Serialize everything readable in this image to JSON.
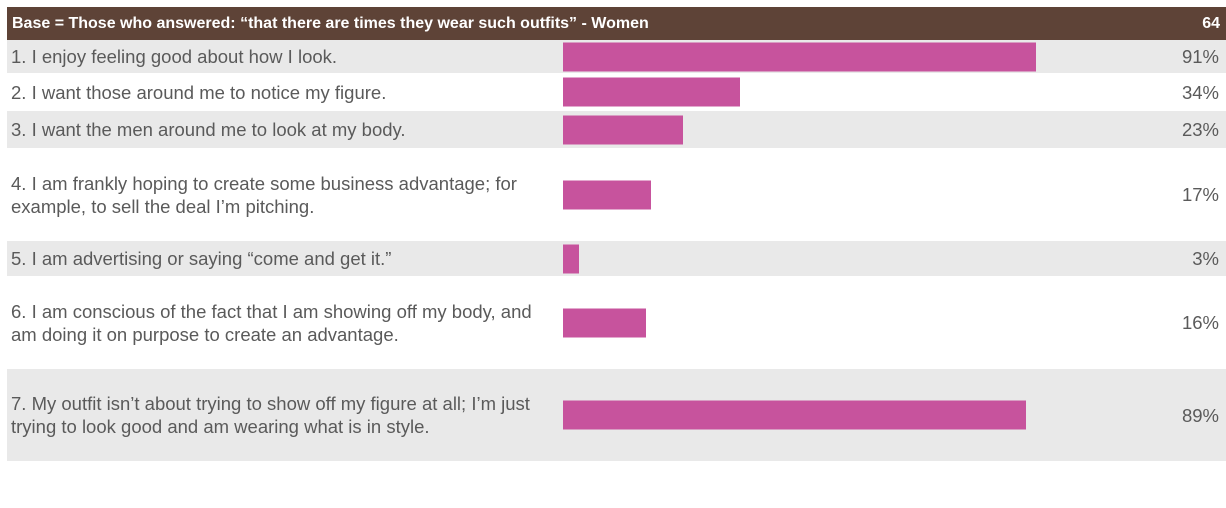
{
  "header": {
    "base_label": "Base = Those who answered: “that there are times they wear such outfits” - Women",
    "base_count": "64"
  },
  "colors": {
    "header_bg": "#5e4337",
    "bar": "#c7539d",
    "row_shade": "#e9e9e9",
    "text": "#5a5a5a"
  },
  "chart_data": {
    "type": "bar",
    "orientation": "horizontal",
    "categories": [
      "1. I enjoy feeling good about how I look.",
      "2. I want those around me to notice my figure.",
      "3. I want the men around me to look at my body.",
      "4. I am frankly hoping to create some business advantage; for example, to sell the deal I’m pitching.",
      "5. I am advertising or saying “come and get it.”",
      "6. I am conscious of the fact that I am showing off my body, and am doing it on purpose to create an advantage.",
      "7. My outfit isn’t about trying to show off my figure at all; I’m just trying to look good and am wearing what is in style."
    ],
    "values": [
      91,
      34,
      23,
      17,
      3,
      16,
      89
    ],
    "value_labels": [
      "91%",
      "34%",
      "23%",
      "17%",
      "3%",
      "16%",
      "89%"
    ],
    "xlim": [
      0,
      100
    ]
  }
}
